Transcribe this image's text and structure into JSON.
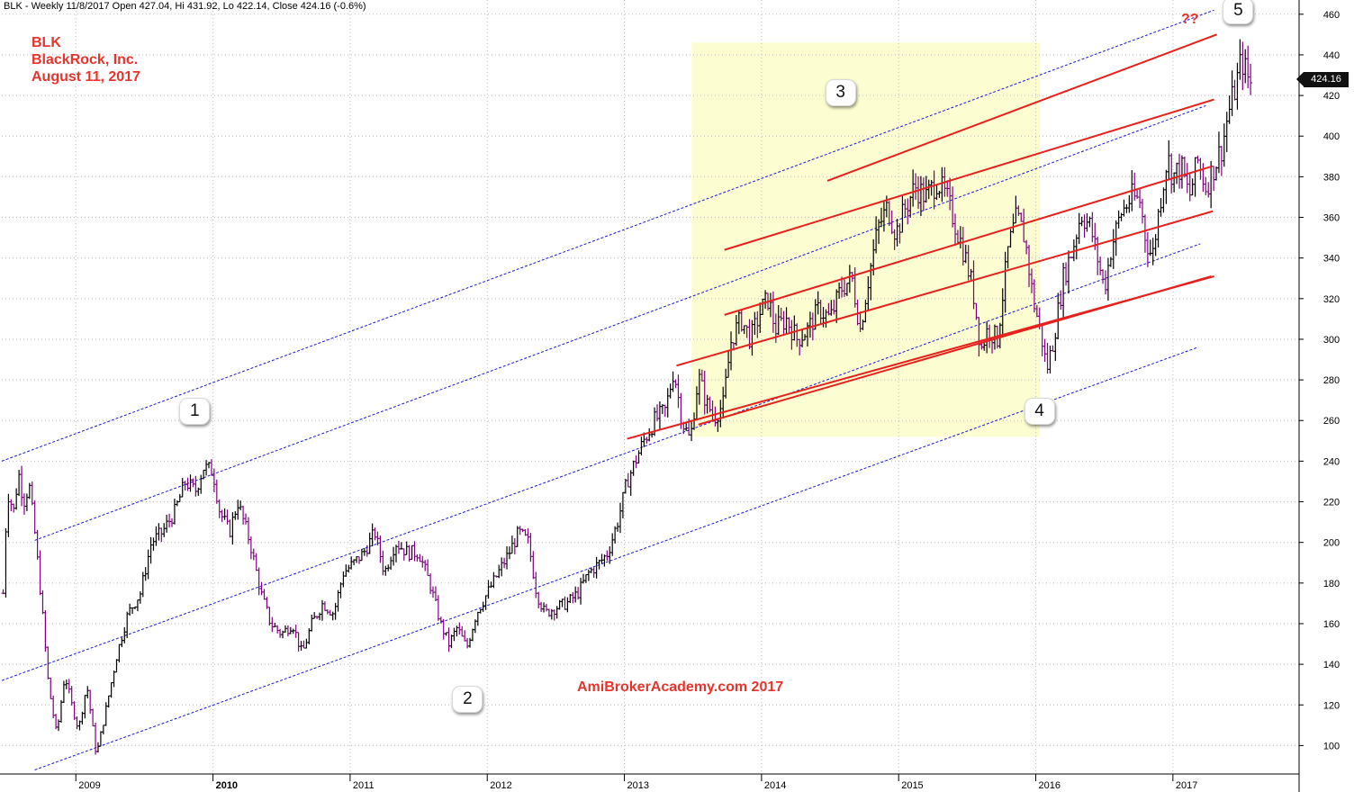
{
  "header": {
    "symbol_line": "BLK - Weekly 11/8/2017 Open 427.04, Hi 431.92, Lo 422.14, Close 424.16 (-0.6%)"
  },
  "title": {
    "ticker": "BLK",
    "company": "BlackRock, Inc.",
    "date": "August 11, 2017"
  },
  "watermark": "AmiBrokerAcademy.com  2017",
  "annotation_qq": "??",
  "last_price_label": "424.16",
  "colors": {
    "up_bar": "#000000",
    "down_bar": "#800080",
    "channel_red": "#e8201c",
    "channel_blue": "#1a1ad0",
    "highlight_zone": "#fdfdd2",
    "annotation_red": "#e8342c",
    "grid": "#bdbdbd"
  },
  "chart_data": {
    "type": "ohlc",
    "timeframe": "Weekly",
    "xlim": [
      2008.46,
      2017.92
    ],
    "ylim": [
      86,
      467
    ],
    "ylabel_ticks": [
      100,
      120,
      140,
      160,
      180,
      200,
      220,
      240,
      260,
      280,
      300,
      320,
      340,
      360,
      380,
      400,
      420,
      440,
      460
    ],
    "x_ticks": [
      {
        "label": "2009",
        "year": 2009.0,
        "bold": false
      },
      {
        "label": "2010",
        "year": 2010.0,
        "bold": true
      },
      {
        "label": "2011",
        "year": 2011.0,
        "bold": false
      },
      {
        "label": "2012",
        "year": 2012.0,
        "bold": false
      },
      {
        "label": "2013",
        "year": 2013.0,
        "bold": false
      },
      {
        "label": "2014",
        "year": 2014.0,
        "bold": false
      },
      {
        "label": "2015",
        "year": 2015.0,
        "bold": false
      },
      {
        "label": "2016",
        "year": 2016.0,
        "bold": false
      },
      {
        "label": "2017",
        "year": 2017.0,
        "bold": false
      }
    ],
    "price_path": [
      [
        2008.47,
        175
      ],
      [
        2008.5,
        225
      ],
      [
        2008.55,
        215
      ],
      [
        2008.58,
        235
      ],
      [
        2008.62,
        220
      ],
      [
        2008.66,
        228
      ],
      [
        2008.7,
        205
      ],
      [
        2008.75,
        170
      ],
      [
        2008.8,
        130
      ],
      [
        2008.86,
        105
      ],
      [
        2008.92,
        135
      ],
      [
        2008.97,
        120
      ],
      [
        2009.02,
        108
      ],
      [
        2009.08,
        130
      ],
      [
        2009.15,
        95
      ],
      [
        2009.22,
        118
      ],
      [
        2009.3,
        145
      ],
      [
        2009.38,
        165
      ],
      [
        2009.47,
        175
      ],
      [
        2009.55,
        200
      ],
      [
        2009.63,
        205
      ],
      [
        2009.72,
        215
      ],
      [
        2009.8,
        230
      ],
      [
        2009.87,
        225
      ],
      [
        2009.93,
        237
      ],
      [
        2010.0,
        235
      ],
      [
        2010.05,
        215
      ],
      [
        2010.12,
        205
      ],
      [
        2010.18,
        220
      ],
      [
        2010.27,
        200
      ],
      [
        2010.35,
        175
      ],
      [
        2010.42,
        160
      ],
      [
        2010.5,
        155
      ],
      [
        2010.58,
        160
      ],
      [
        2010.65,
        145
      ],
      [
        2010.72,
        160
      ],
      [
        2010.8,
        170
      ],
      [
        2010.88,
        165
      ],
      [
        2010.95,
        185
      ],
      [
        2011.03,
        190
      ],
      [
        2011.1,
        195
      ],
      [
        2011.18,
        205
      ],
      [
        2011.25,
        185
      ],
      [
        2011.33,
        200
      ],
      [
        2011.42,
        195
      ],
      [
        2011.5,
        195
      ],
      [
        2011.58,
        180
      ],
      [
        2011.66,
        160
      ],
      [
        2011.72,
        150
      ],
      [
        2011.78,
        158
      ],
      [
        2011.85,
        148
      ],
      [
        2011.92,
        165
      ],
      [
        2012.0,
        175
      ],
      [
        2012.08,
        185
      ],
      [
        2012.16,
        195
      ],
      [
        2012.23,
        205
      ],
      [
        2012.3,
        200
      ],
      [
        2012.36,
        175
      ],
      [
        2012.42,
        165
      ],
      [
        2012.5,
        168
      ],
      [
        2012.58,
        170
      ],
      [
        2012.66,
        175
      ],
      [
        2012.74,
        185
      ],
      [
        2012.82,
        190
      ],
      [
        2012.88,
        195
      ],
      [
        2012.95,
        210
      ],
      [
        2013.02,
        230
      ],
      [
        2013.08,
        240
      ],
      [
        2013.14,
        250
      ],
      [
        2013.22,
        260
      ],
      [
        2013.3,
        265
      ],
      [
        2013.36,
        285
      ],
      [
        2013.42,
        260
      ],
      [
        2013.48,
        250
      ],
      [
        2013.54,
        282
      ],
      [
        2013.6,
        268
      ],
      [
        2013.66,
        262
      ],
      [
        2013.72,
        268
      ],
      [
        2013.78,
        300
      ],
      [
        2013.85,
        310
      ],
      [
        2013.92,
        300
      ],
      [
        2014.0,
        315
      ],
      [
        2014.05,
        320
      ],
      [
        2014.1,
        305
      ],
      [
        2014.18,
        310
      ],
      [
        2014.26,
        300
      ],
      [
        2014.34,
        305
      ],
      [
        2014.42,
        315
      ],
      [
        2014.5,
        310
      ],
      [
        2014.58,
        325
      ],
      [
        2014.66,
        330
      ],
      [
        2014.72,
        305
      ],
      [
        2014.78,
        330
      ],
      [
        2014.85,
        355
      ],
      [
        2014.92,
        365
      ],
      [
        2014.98,
        352
      ],
      [
        2015.05,
        365
      ],
      [
        2015.12,
        375
      ],
      [
        2015.2,
        370
      ],
      [
        2015.28,
        378
      ],
      [
        2015.36,
        368
      ],
      [
        2015.42,
        355
      ],
      [
        2015.48,
        342
      ],
      [
        2015.54,
        325
      ],
      [
        2015.6,
        295
      ],
      [
        2015.65,
        305
      ],
      [
        2015.72,
        300
      ],
      [
        2015.8,
        345
      ],
      [
        2015.86,
        360
      ],
      [
        2015.92,
        350
      ],
      [
        2015.98,
        320
      ],
      [
        2016.04,
        302
      ],
      [
        2016.08,
        285
      ],
      [
        2016.13,
        300
      ],
      [
        2016.2,
        330
      ],
      [
        2016.27,
        345
      ],
      [
        2016.33,
        362
      ],
      [
        2016.4,
        355
      ],
      [
        2016.45,
        340
      ],
      [
        2016.5,
        325
      ],
      [
        2016.55,
        345
      ],
      [
        2016.62,
        362
      ],
      [
        2016.7,
        370
      ],
      [
        2016.76,
        368
      ],
      [
        2016.8,
        350
      ],
      [
        2016.85,
        340
      ],
      [
        2016.9,
        365
      ],
      [
        2016.96,
        390
      ],
      [
        2017.0,
        380
      ],
      [
        2017.06,
        385
      ],
      [
        2017.12,
        370
      ],
      [
        2017.18,
        388
      ],
      [
        2017.24,
        375
      ],
      [
        2017.3,
        385
      ],
      [
        2017.36,
        395
      ],
      [
        2017.4,
        410
      ],
      [
        2017.46,
        425
      ],
      [
        2017.5,
        438
      ],
      [
        2017.55,
        428
      ],
      [
        2017.58,
        424
      ]
    ],
    "highlight_zone": {
      "x": [
        2013.49,
        2016.03
      ],
      "y": [
        252,
        446
      ]
    },
    "red_channel_lines": [
      {
        "x": [
          2014.48,
          2017.32
        ],
        "y": [
          378,
          450
        ]
      },
      {
        "x": [
          2013.73,
          2017.3
        ],
        "y": [
          344,
          418
        ]
      },
      {
        "x": [
          2013.73,
          2017.28
        ],
        "y": [
          312,
          385
        ]
      },
      {
        "x": [
          2013.38,
          2017.29
        ],
        "y": [
          287,
          363
        ]
      },
      {
        "x": [
          2013.02,
          2017.3
        ],
        "y": [
          251,
          331
        ]
      },
      {
        "x": [
          2013.54,
          2017.28
        ],
        "y": [
          258,
          331
        ]
      }
    ],
    "blue_channel_lines": [
      {
        "x": [
          2008.46,
          2017.3
        ],
        "y": [
          240,
          462
        ]
      },
      {
        "x": [
          2008.7,
          2017.24
        ],
        "y": [
          201,
          415
        ]
      },
      {
        "x": [
          2008.46,
          2017.2
        ],
        "y": [
          132,
          347
        ]
      },
      {
        "x": [
          2008.7,
          2017.18
        ],
        "y": [
          88,
          296
        ]
      }
    ],
    "wave_labels": [
      {
        "label": "1",
        "x": 2009.86,
        "y": 265
      },
      {
        "label": "2",
        "x": 2011.85,
        "y": 123
      },
      {
        "label": "3",
        "x": 2014.57,
        "y": 422
      },
      {
        "label": "4",
        "x": 2016.02,
        "y": 265
      },
      {
        "label": "5",
        "x": 2017.47,
        "y": 462
      }
    ]
  }
}
